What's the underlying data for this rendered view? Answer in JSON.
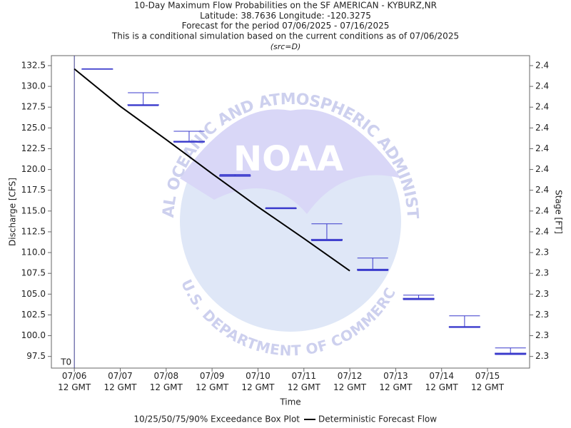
{
  "chart_data": {
    "type": "box",
    "title_lines": [
      "10-Day Maximum Flow Probabilities on the SF AMERICAN - KYBURZ,NR",
      "Latitude: 38.7636 Longitude: -120.3275",
      "Forecast for the period 07/06/2025 - 07/16/2025",
      "This is a conditional simulation based on the current conditions as of 07/06/2025"
    ],
    "subtitle": "(src=D)",
    "xlabel": "Time",
    "ylabel": "Discharge [CFS]",
    "y2label": "Stage [FT]",
    "t0_label": "T0",
    "t0": "2025-07-06T12",
    "watermark": {
      "name": "NOAA",
      "top": "NATIONAL OCEANIC AND ATMOSPHERIC ADMINISTRATION",
      "bottom": "U.S. DEPARTMENT OF COMMERCE"
    },
    "xlim": [
      "2025-07-06T00",
      "2025-07-16T10"
    ],
    "xticks": [
      {
        "value": "2025-07-06T12",
        "label": "07/06 12 GMT"
      },
      {
        "value": "2025-07-07T12",
        "label": "07/07 12 GMT"
      },
      {
        "value": "2025-07-08T12",
        "label": "07/08 12 GMT"
      },
      {
        "value": "2025-07-09T12",
        "label": "07/09 12 GMT"
      },
      {
        "value": "2025-07-10T12",
        "label": "07/10 12 GMT"
      },
      {
        "value": "2025-07-11T12",
        "label": "07/11 12 GMT"
      },
      {
        "value": "2025-07-12T12",
        "label": "07/12 12 GMT"
      },
      {
        "value": "2025-07-13T12",
        "label": "07/13 12 GMT"
      },
      {
        "value": "2025-07-14T12",
        "label": "07/14 12 GMT"
      },
      {
        "value": "2025-07-15T12",
        "label": "07/15 12 GMT"
      }
    ],
    "ylim": [
      96.1,
      133.7
    ],
    "yticks": [
      {
        "value": 97.5,
        "label": "97.5"
      },
      {
        "value": 100,
        "label": "100.0"
      },
      {
        "value": 102.5,
        "label": "102.5"
      },
      {
        "value": 105,
        "label": "105.0"
      },
      {
        "value": 107.5,
        "label": "107.5"
      },
      {
        "value": 110,
        "label": "110.0"
      },
      {
        "value": 112.5,
        "label": "112.5"
      },
      {
        "value": 115,
        "label": "115.0"
      },
      {
        "value": 117.5,
        "label": "117.5"
      },
      {
        "value": 120,
        "label": "120.0"
      },
      {
        "value": 122.5,
        "label": "122.5"
      },
      {
        "value": 125,
        "label": "125.0"
      },
      {
        "value": 127.5,
        "label": "127.5"
      },
      {
        "value": 130,
        "label": "130.0"
      },
      {
        "value": 132.5,
        "label": "132.5"
      }
    ],
    "y2lim": [
      2.2894,
      2.4398
    ],
    "y2ticks": [
      {
        "value": 2.295,
        "label": "2.3"
      },
      {
        "value": 2.305,
        "label": "2.3"
      },
      {
        "value": 2.315,
        "label": "2.3"
      },
      {
        "value": 2.325,
        "label": "2.3"
      },
      {
        "value": 2.335,
        "label": "2.3"
      },
      {
        "value": 2.345,
        "label": "2.3"
      },
      {
        "value": 2.355,
        "label": "2.4"
      },
      {
        "value": 2.365,
        "label": "2.4"
      },
      {
        "value": 2.375,
        "label": "2.4"
      },
      {
        "value": 2.385,
        "label": "2.4"
      },
      {
        "value": 2.395,
        "label": "2.4"
      },
      {
        "value": 2.405,
        "label": "2.4"
      },
      {
        "value": 2.415,
        "label": "2.4"
      },
      {
        "value": 2.425,
        "label": "2.4"
      },
      {
        "value": 2.435,
        "label": "2.4"
      }
    ],
    "boxes": {
      "name": "10/25/50/75/90% Exceedance Box Plot",
      "color": "#3a3acc",
      "x": [
        "2025-07-07T00",
        "2025-07-08T00",
        "2025-07-09T00",
        "2025-07-10T00",
        "2025-07-11T00",
        "2025-07-12T00",
        "2025-07-13T00",
        "2025-07-14T00",
        "2025-07-15T00",
        "2025-07-16T00"
      ],
      "p90": [
        132.1,
        129.24,
        124.6,
        119.4,
        115.4,
        113.46,
        109.34,
        104.88,
        102.39,
        98.53
      ],
      "p75": [
        132.1,
        127.8,
        123.4,
        119.3,
        115.35,
        111.6,
        108.0,
        104.5,
        101.1,
        97.9
      ],
      "p50": [
        132.1,
        127.78,
        123.35,
        119.25,
        115.3,
        111.5,
        107.95,
        104.45,
        101.05,
        97.85
      ],
      "p25": [
        132.1,
        127.75,
        123.32,
        119.2,
        115.3,
        111.48,
        107.88,
        104.36,
        101.0,
        97.76
      ],
      "p10": [
        132.1,
        127.7,
        123.3,
        119.2,
        115.3,
        111.45,
        107.85,
        104.35,
        101.0,
        97.75
      ]
    },
    "line": {
      "name": "Deterministic Forecast Flow",
      "color": "#000000",
      "x": [
        "2025-07-06T12",
        "2025-07-07T12",
        "2025-07-08T12",
        "2025-07-09T12",
        "2025-07-10T12",
        "2025-07-11T12",
        "2025-07-12T12"
      ],
      "values": [
        132.1,
        127.6,
        123.6,
        119.5,
        115.5,
        111.7,
        107.8
      ]
    }
  }
}
